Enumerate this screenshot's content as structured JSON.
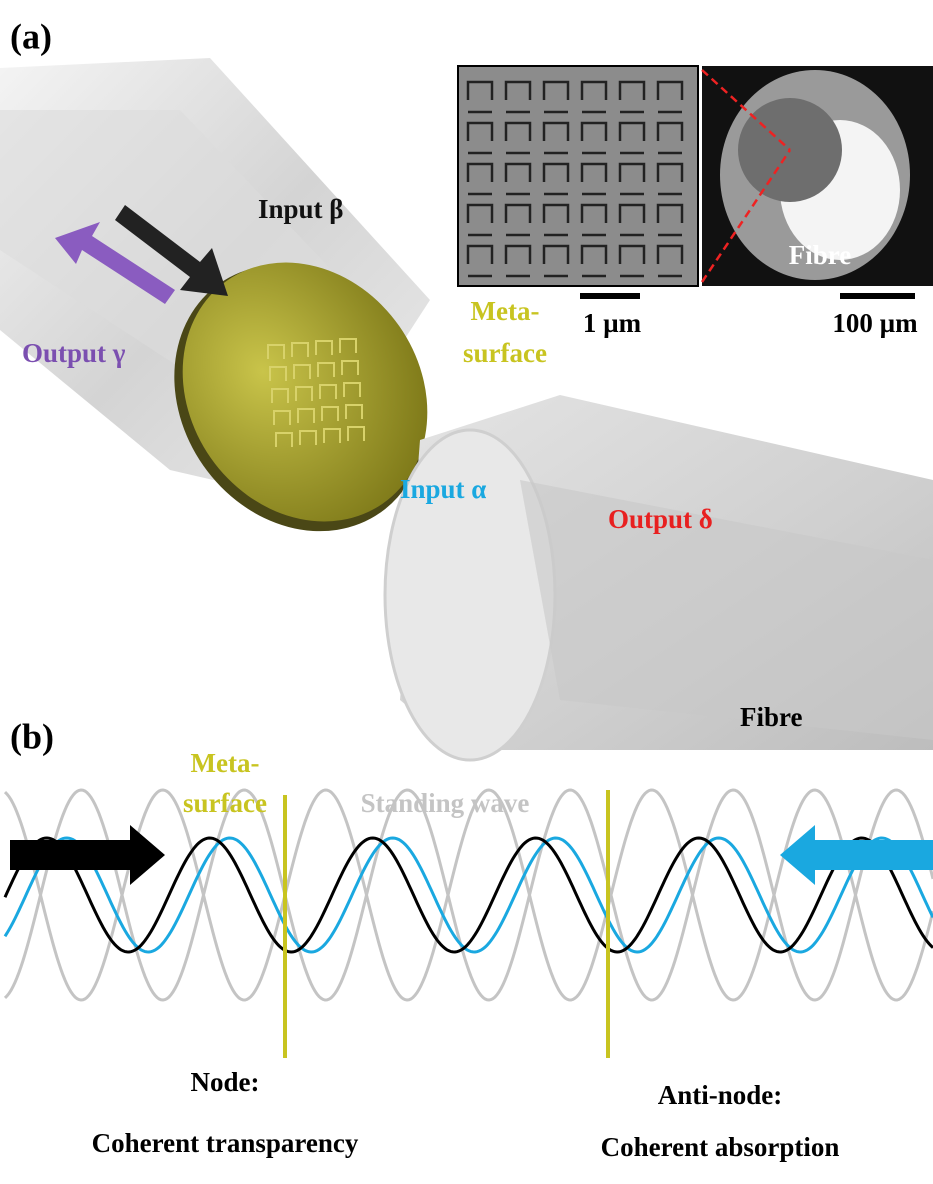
{
  "panel_a": {
    "label": "(a)",
    "input_beta": "Input β",
    "output_gamma": "Output γ",
    "metasurface": [
      "Meta-",
      "surface"
    ],
    "scale_left": "1 µm",
    "scale_right": "100 µm",
    "sem_fibre": "Fibre",
    "input_alpha": "Input α",
    "output_delta": "Output δ",
    "fibre": "Fibre"
  },
  "panel_b": {
    "label": "(b)",
    "metasurface": [
      "Meta-",
      "surface"
    ],
    "standing_wave": "Standing wave",
    "node": [
      "Node:",
      "Coherent transparency"
    ],
    "antinode": [
      "Anti-node:",
      "Coherent absorption"
    ]
  }
}
